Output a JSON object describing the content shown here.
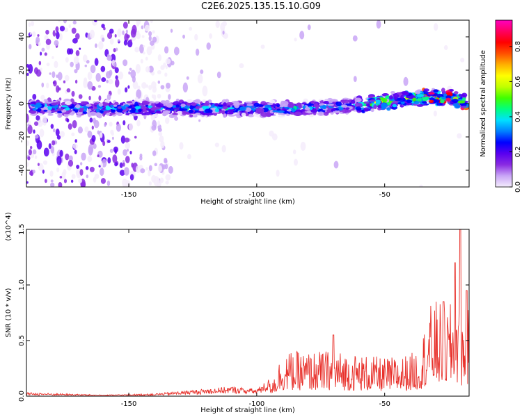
{
  "title": "C2E6.2025.135.15.10.G09",
  "chart_data": [
    {
      "type": "heatmap",
      "xlabel": "Height of straight line (km)",
      "ylabel": "Frequency (Hz)",
      "xlim": [
        -190,
        -17
      ],
      "ylim": [
        -50,
        50
      ],
      "xticks": [
        -150,
        -100,
        -50
      ],
      "xtick_labels": [
        "-150",
        "-100",
        "-50"
      ],
      "yticks": [
        -40,
        -20,
        0,
        20,
        40
      ],
      "ytick_labels": [
        "-40",
        "-20",
        "0",
        "20",
        "40"
      ],
      "colorbar": {
        "label": "Normalized spectral amplitude",
        "range": [
          0,
          0.95
        ],
        "ticks": [
          0.0,
          0.2,
          0.4,
          0.6,
          0.8
        ],
        "tick_labels": [
          "0.0",
          "0.2",
          "0.4",
          "0.6",
          "0.8"
        ],
        "colors": [
          "#f4ecfc",
          "#c9a6f6",
          "#8a2be2",
          "#5a00f0",
          "#0000ff",
          "#0080ff",
          "#00e0ff",
          "#00ff80",
          "#40ff00",
          "#c0ff00",
          "#ffff00",
          "#ffb000",
          "#ff5000",
          "#ff0000",
          "#ff0060",
          "#ff00c0"
        ]
      },
      "ridge": {
        "x": [
          -190,
          -170,
          -150,
          -130,
          -110,
          -90,
          -70,
          -50,
          -35,
          -25,
          -17
        ],
        "freq_hz": [
          -2,
          -3,
          -3,
          -3,
          -3,
          -3,
          -2,
          1,
          4,
          4,
          0
        ]
      }
    },
    {
      "type": "line",
      "xlabel": "Height of straight line (km)",
      "ylabel": "SNR (10 * v/v)",
      "y_multiplier": "(x10^4)",
      "xlim": [
        -190,
        -17
      ],
      "ylim": [
        0,
        1.5
      ],
      "xticks": [
        -150,
        -100,
        -50
      ],
      "xtick_labels": [
        "-150",
        "-100",
        "-50"
      ],
      "yticks": [
        0.0,
        0.5,
        1.0,
        1.5
      ],
      "ytick_labels": [
        "0.0",
        "0.5",
        "1.0",
        "1.5"
      ],
      "line_color": "#e8302a",
      "envelope": {
        "x": [
          -190,
          -160,
          -140,
          -125,
          -110,
          -100,
          -93,
          -90,
          -80,
          -70,
          -60,
          -50,
          -40,
          -36,
          -33,
          -30,
          -25,
          -22,
          -20,
          -17
        ],
        "y": [
          0.03,
          0.01,
          0.02,
          0.05,
          0.08,
          0.06,
          0.18,
          0.35,
          0.35,
          0.36,
          0.33,
          0.3,
          0.33,
          0.4,
          0.7,
          0.75,
          0.7,
          0.8,
          0.6,
          0.7
        ]
      },
      "peaks": [
        {
          "x": -20.5,
          "y": 1.5
        },
        {
          "x": -22.5,
          "y": 1.2
        },
        {
          "x": -18,
          "y": 0.95
        },
        {
          "x": -27,
          "y": 0.85
        },
        {
          "x": -70,
          "y": 0.55
        }
      ]
    }
  ]
}
